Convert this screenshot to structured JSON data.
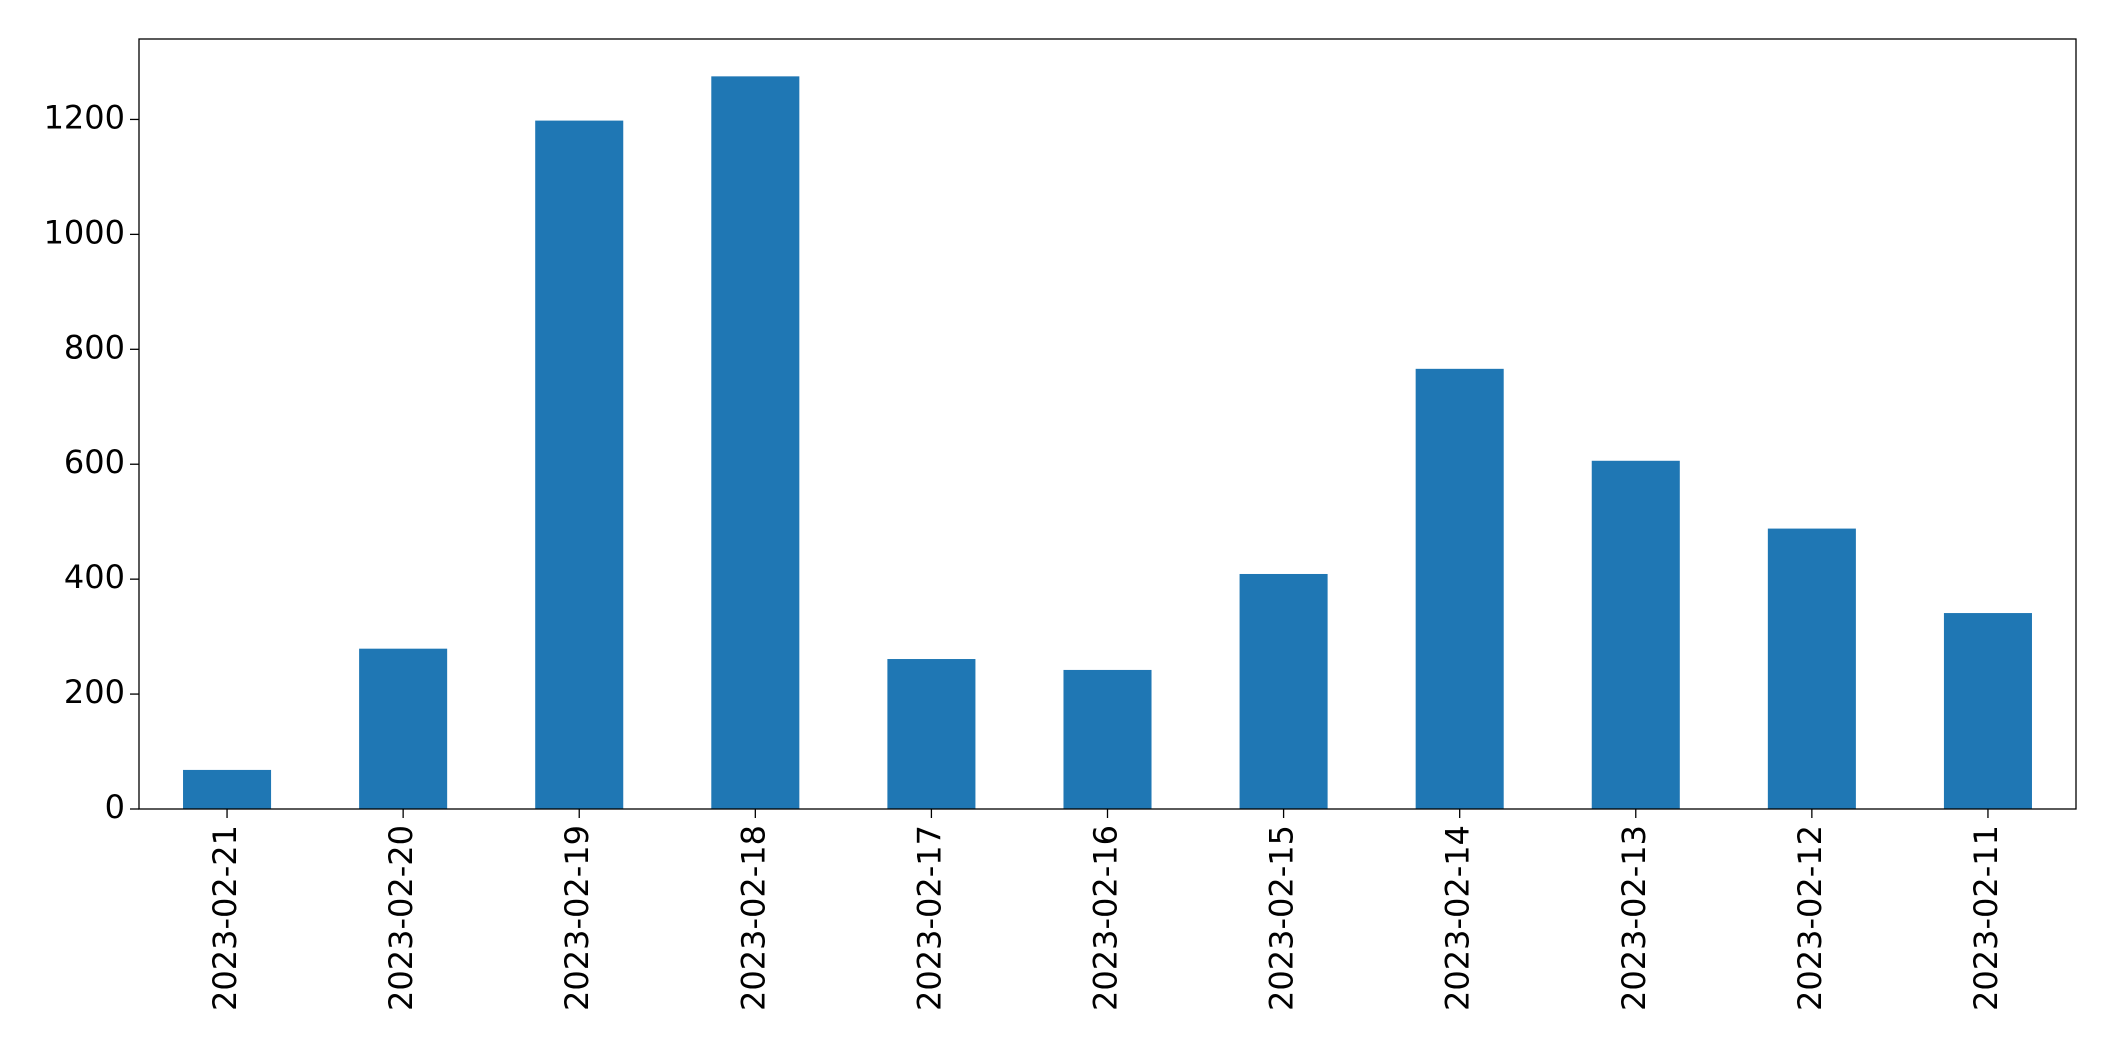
{
  "chart_data": {
    "type": "bar",
    "categories": [
      "2023-02-21",
      "2023-02-20",
      "2023-02-19",
      "2023-02-18",
      "2023-02-17",
      "2023-02-16",
      "2023-02-15",
      "2023-02-14",
      "2023-02-13",
      "2023-02-12",
      "2023-02-11"
    ],
    "values": [
      68,
      279,
      1198,
      1275,
      261,
      242,
      409,
      766,
      606,
      488,
      341
    ],
    "color": "#1f77b4",
    "ylim": [
      0,
      1340
    ],
    "yticks": [
      0,
      200,
      400,
      600,
      800,
      1000,
      1200
    ],
    "grid": false
  }
}
